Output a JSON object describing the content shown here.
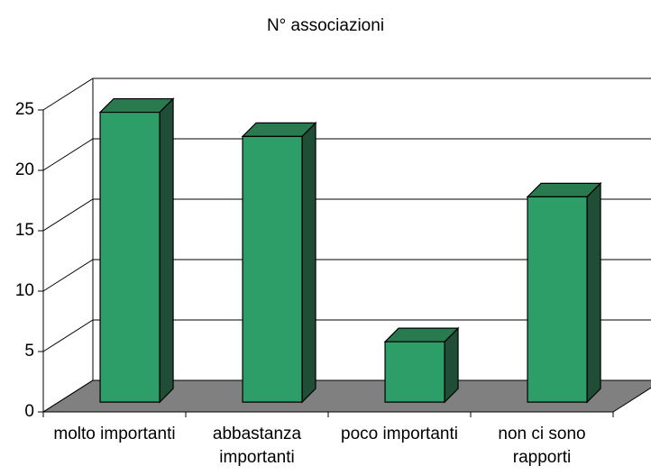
{
  "chart_data": {
    "type": "bar3d",
    "title": "N° associazioni",
    "categories": [
      "molto importanti",
      "abbastanza importanti",
      "poco importanti",
      "non ci sono rapporti"
    ],
    "values": [
      24,
      22,
      5,
      17
    ],
    "color": "#2e9e68",
    "ylim": [
      0,
      25
    ],
    "yticks": [
      0,
      5,
      10,
      15,
      20,
      25
    ],
    "grid": true
  }
}
